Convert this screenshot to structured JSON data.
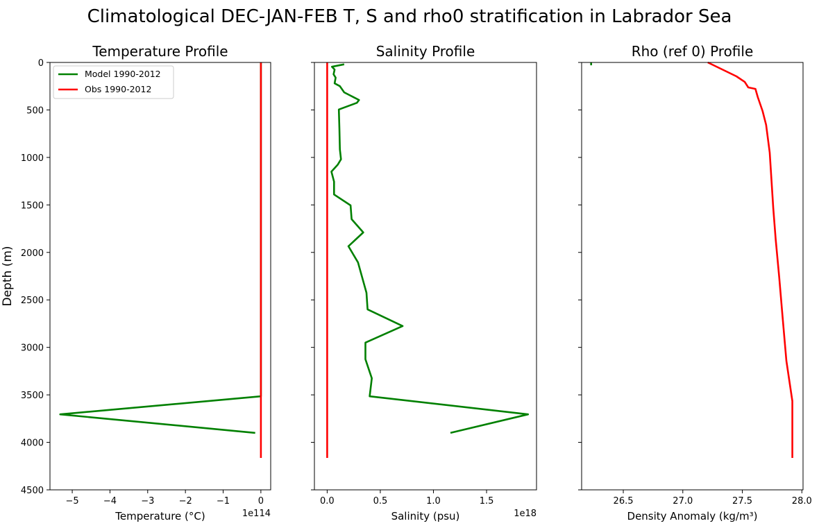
{
  "chart_data": {
    "title": "Climatological DEC-JAN-FEB T, S and rho0 stratification in Labrador Sea",
    "ylabel": "Depth (m)",
    "ylim": [
      4500,
      0
    ],
    "yticks": [
      0,
      500,
      1000,
      1500,
      2000,
      2500,
      3000,
      3500,
      4000,
      4500
    ],
    "legend": {
      "placement": "upper-left",
      "entries": [
        "Model 1990-2012",
        "Obs 1990-2012"
      ]
    },
    "colors": {
      "model": "#008000",
      "obs": "#ff0000"
    },
    "panels": [
      {
        "type": "line",
        "title": "Temperature Profile",
        "xlabel": "Temperature (°C)",
        "offset_label": "1e114",
        "xlim": [
          -5.59,
          0.26
        ],
        "xticks": [
          -5,
          -4,
          -3,
          -2,
          -1,
          0
        ],
        "xtick_labels": [
          "−5",
          "−4",
          "−3",
          "−2",
          "−1",
          "0"
        ],
        "series": [
          {
            "name": "Model 1990-2012",
            "color": "#008000",
            "x": [
              0,
              0,
              0,
              0,
              -5.32,
              -0.15
            ],
            "y": [
              0,
              1000,
              2500,
              3515,
              3705,
              3900
            ]
          },
          {
            "name": "Obs 1990-2012",
            "color": "#ff0000",
            "x": [
              0,
              0
            ],
            "y": [
              0,
              4164
            ]
          }
        ]
      },
      {
        "type": "line",
        "title": "Salinity Profile",
        "xlabel": "Salinity (psu)",
        "offset_label": "1e18",
        "xlim": [
          -0.12,
          1.97
        ],
        "xticks": [
          0,
          0.5,
          1.0,
          1.5
        ],
        "xtick_labels": [
          "0.0",
          "0.5",
          "1.0",
          "1.5"
        ],
        "series": [
          {
            "name": "Model 1990-2012",
            "color": "#008000",
            "x": [
              0.16,
              0.045,
              0.07,
              0.06,
              0.08,
              0.07,
              0.12,
              0.16,
              0.22,
              0.3,
              0.28,
              0.11,
              0.115,
              0.12,
              0.13,
              0.1,
              0.04,
              0.065,
              0.065,
              0.22,
              0.23,
              0.34,
              0.2,
              0.29,
              0.37,
              0.38,
              0.71,
              0.36,
              0.36,
              0.42,
              0.4,
              1.89,
              1.16
            ],
            "y": [
              20,
              45,
              75,
              125,
              160,
              220,
              250,
              315,
              350,
              395,
              425,
              495,
              695,
              915,
              1020,
              1075,
              1150,
              1255,
              1390,
              1505,
              1650,
              1790,
              1935,
              2105,
              2425,
              2600,
              2775,
              2950,
              3125,
              3325,
              3515,
              3705,
              3900
            ]
          },
          {
            "name": "Obs 1990-2012",
            "color": "#ff0000",
            "x": [
              0,
              0
            ],
            "y": [
              0,
              4164
            ]
          }
        ]
      },
      {
        "type": "line",
        "title": "Rho (ref 0) Profile",
        "xlabel": "Density Anomaly (kg/m³)",
        "offset_label": "",
        "xlim": [
          26.15,
          28.01
        ],
        "xticks": [
          26.5,
          27.0,
          27.5,
          28.0
        ],
        "xtick_labels": [
          "26.5",
          "27.0",
          "27.5",
          "28.0"
        ],
        "series": [
          {
            "name": "Model 1990-2012",
            "color": "#008000",
            "x": [
              26.23,
              26.23
            ],
            "y": [
              0,
              30
            ]
          },
          {
            "name": "Obs 1990-2012",
            "color": "#ff0000",
            "x": [
              27.21,
              27.33,
              27.45,
              27.52,
              27.55,
              27.61,
              27.63,
              27.67,
              27.7,
              27.73,
              27.76,
              27.78,
              27.81,
              27.84,
              27.87,
              27.92,
              27.92,
              27.92
            ],
            "y": [
              0,
              73,
              146,
              205,
              263,
              278,
              365,
              511,
              657,
              950,
              1534,
              1863,
              2264,
              2703,
              3141,
              3565,
              3872,
              4164
            ]
          }
        ]
      }
    ]
  }
}
